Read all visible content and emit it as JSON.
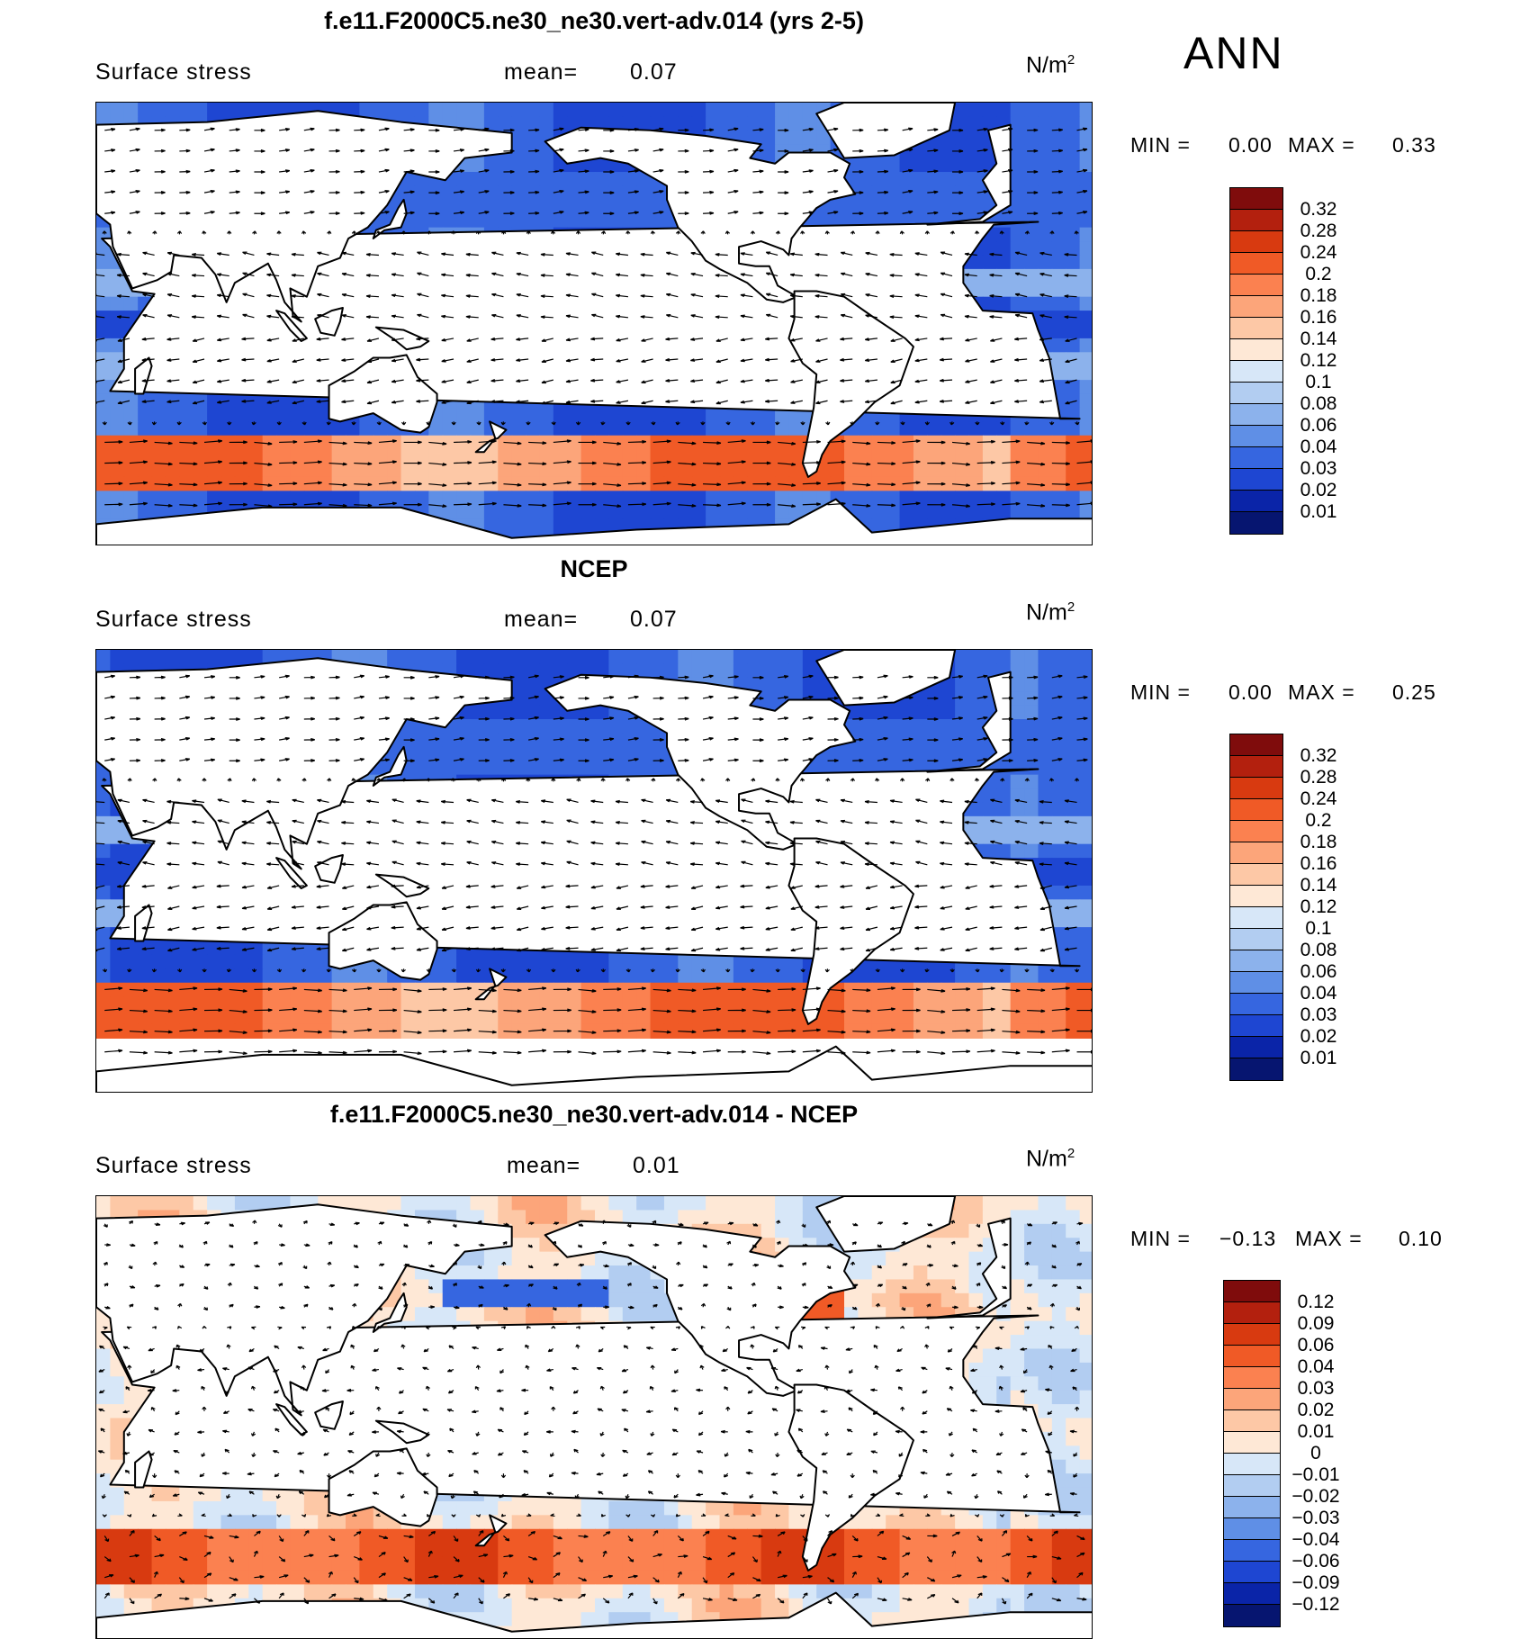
{
  "season": "ANN",
  "panels": [
    {
      "title": "f.e11.F2000C5.ne30_ne30.vert-adv.014 (yrs 2-5)",
      "variable": "Surface stress",
      "mean_label": "mean=",
      "mean_value": "0.07",
      "units_base": "N/m",
      "units_sup": "2",
      "min_label": "MIN =",
      "min_value": "0.00",
      "max_label": "MAX =",
      "max_value": "0.33",
      "colorbar_labels": [
        "0.32",
        "0.28",
        "0.24",
        "0.2",
        "0.18",
        "0.16",
        "0.14",
        "0.12",
        "0.1",
        "0.08",
        "0.06",
        "0.04",
        "0.03",
        "0.02",
        "0.01"
      ],
      "colorbar_colors": [
        "#7f0c0c",
        "#b3200e",
        "#d83a10",
        "#f05a26",
        "#fb8150",
        "#fca57a",
        "#fdc8a6",
        "#fee8d6",
        "#d7e7f8",
        "#b2cdf1",
        "#8cb2ec",
        "#5f8fe6",
        "#3666e0",
        "#1e46d2",
        "#0a24a8",
        "#061570"
      ],
      "field": "model"
    },
    {
      "title": "NCEP",
      "variable": "Surface stress",
      "mean_label": "mean=",
      "mean_value": "0.07",
      "units_base": "N/m",
      "units_sup": "2",
      "min_label": "MIN =",
      "min_value": "0.00",
      "max_label": "MAX =",
      "max_value": "0.25",
      "colorbar_labels": [
        "0.32",
        "0.28",
        "0.24",
        "0.2",
        "0.18",
        "0.16",
        "0.14",
        "0.12",
        "0.1",
        "0.08",
        "0.06",
        "0.04",
        "0.03",
        "0.02",
        "0.01"
      ],
      "colorbar_colors": [
        "#7f0c0c",
        "#b3200e",
        "#d83a10",
        "#f05a26",
        "#fb8150",
        "#fca57a",
        "#fdc8a6",
        "#fee8d6",
        "#d7e7f8",
        "#b2cdf1",
        "#8cb2ec",
        "#5f8fe6",
        "#3666e0",
        "#1e46d2",
        "#0a24a8",
        "#061570"
      ],
      "field": "obs"
    },
    {
      "title": "f.e11.F2000C5.ne30_ne30.vert-adv.014 - NCEP",
      "variable": "Surface stress",
      "mean_label": "mean=",
      "mean_value": "0.01",
      "units_base": "N/m",
      "units_sup": "2",
      "min_label": "MIN =",
      "min_value": "−0.13",
      "max_label": "MAX =",
      "max_value": "0.10",
      "colorbar_labels": [
        "0.12",
        "0.09",
        "0.06",
        "0.04",
        "0.03",
        "0.02",
        "0.01",
        "0",
        "−0.01",
        "−0.02",
        "−0.03",
        "−0.04",
        "−0.06",
        "−0.09",
        "−0.12"
      ],
      "colorbar_colors": [
        "#7f0c0c",
        "#b3200e",
        "#d83a10",
        "#f05a26",
        "#fb8150",
        "#fca57a",
        "#fdc8a6",
        "#fee8d6",
        "#d7e7f8",
        "#b2cdf1",
        "#8cb2ec",
        "#5f8fe6",
        "#3666e0",
        "#1e46d2",
        "#0a24a8",
        "#061570"
      ],
      "field": "diff"
    }
  ]
}
